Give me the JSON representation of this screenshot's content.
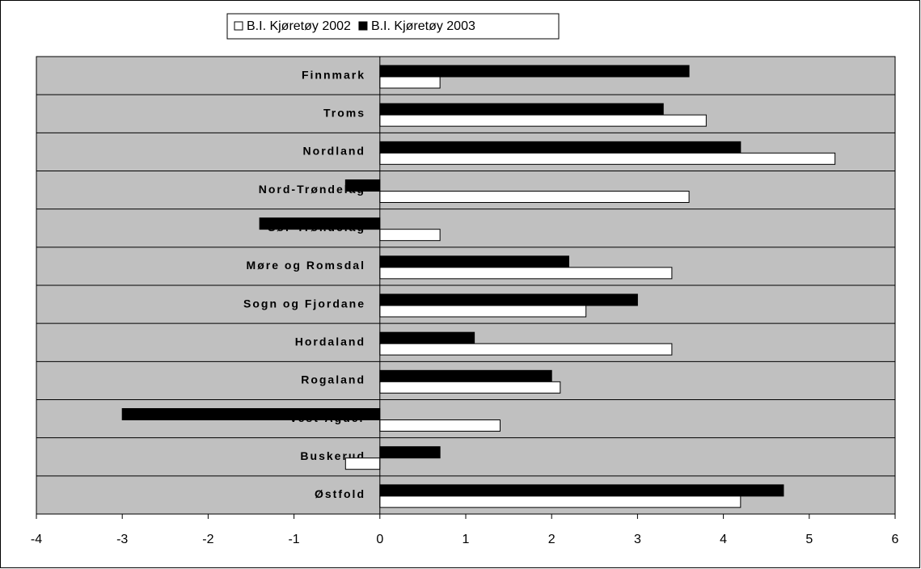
{
  "chart_data": {
    "type": "hbar",
    "categories": [
      "Finnmark",
      "Troms",
      "Nordland",
      "Nord-Trøndelag",
      "Sør-Trøndelag",
      "Møre og Romsdal",
      "Sogn og Fjordane",
      "Hordaland",
      "Rogaland",
      "Vest-Agder",
      "Buskerud",
      "Østfold"
    ],
    "series": [
      {
        "name": "B.I. Kjøretøy 2002",
        "color": "#ffffff",
        "values": [
          0.7,
          3.8,
          5.3,
          3.6,
          0.7,
          3.4,
          2.4,
          3.4,
          2.1,
          1.4,
          -0.4,
          4.2
        ]
      },
      {
        "name": "B.I. Kjøretøy 2003",
        "color": "#000000",
        "values": [
          3.6,
          3.3,
          4.2,
          -0.4,
          -1.4,
          2.2,
          3.0,
          1.1,
          2.0,
          -3.0,
          0.7,
          4.7
        ]
      }
    ],
    "xlim": [
      -4,
      6
    ],
    "xticks": [
      -4,
      -3,
      -2,
      -1,
      0,
      1,
      2,
      3,
      4,
      5,
      6
    ],
    "grid": true,
    "legend": "top",
    "background": "#c0c0c0"
  }
}
